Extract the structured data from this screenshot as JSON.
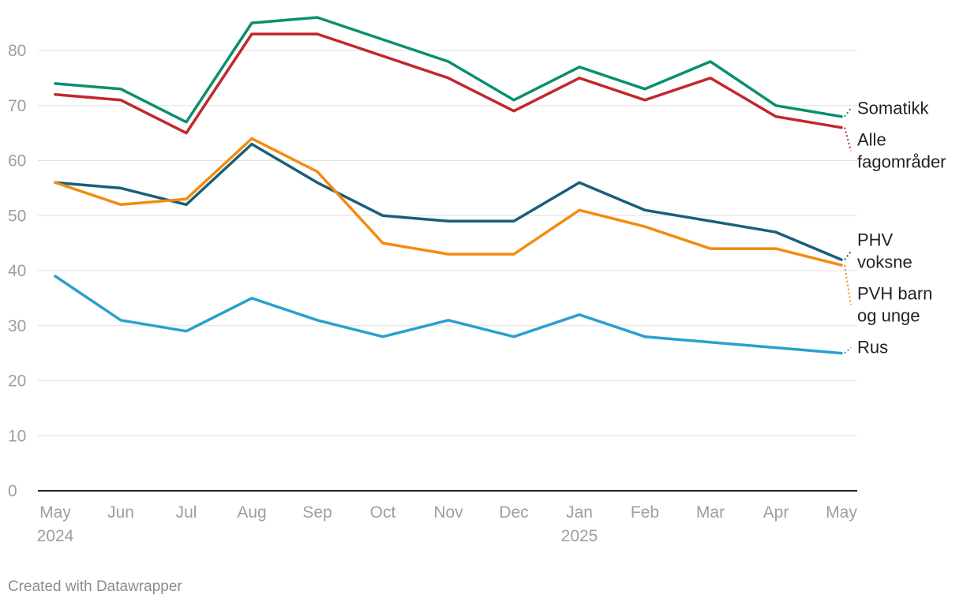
{
  "chart_data": {
    "type": "line",
    "x": [
      "May 2024",
      "Jun",
      "Jul",
      "Aug",
      "Sep",
      "Oct",
      "Nov",
      "Dec",
      "Jan 2025",
      "Feb",
      "Mar",
      "Apr",
      "May"
    ],
    "x_tick_labels": [
      [
        "May",
        "2024"
      ],
      [
        "Jun"
      ],
      [
        "Jul"
      ],
      [
        "Aug"
      ],
      [
        "Sep"
      ],
      [
        "Oct"
      ],
      [
        "Nov"
      ],
      [
        "Dec"
      ],
      [
        "Jan",
        "2025"
      ],
      [
        "Feb"
      ],
      [
        "Mar"
      ],
      [
        "Apr"
      ],
      [
        "May"
      ]
    ],
    "y_ticks": [
      0,
      10,
      20,
      30,
      40,
      50,
      60,
      70,
      80
    ],
    "ylim": [
      0,
      86
    ],
    "grid": true,
    "legend": "direct labels at right",
    "series": [
      {
        "name": "Somatikk",
        "label_lines": [
          "Somatikk"
        ],
        "color": "#0a8f6f",
        "values": [
          74,
          73,
          67,
          85,
          86,
          82,
          78,
          71,
          77,
          73,
          78,
          70,
          68
        ]
      },
      {
        "name": "Alle fagområder",
        "label_lines": [
          "Alle",
          "fagområder"
        ],
        "color": "#c1272d",
        "values": [
          72,
          71,
          65,
          83,
          83,
          79,
          75,
          69,
          75,
          71,
          75,
          68,
          66
        ]
      },
      {
        "name": "PHV voksne",
        "label_lines": [
          "PHV",
          "voksne"
        ],
        "color": "#1b5e7a",
        "values": [
          56,
          55,
          52,
          63,
          56,
          50,
          49,
          49,
          56,
          51,
          49,
          47,
          42
        ]
      },
      {
        "name": "PVH barn og unge",
        "label_lines": [
          "PVH barn",
          "og unge"
        ],
        "color": "#f28c0f",
        "values": [
          56,
          52,
          53,
          64,
          58,
          45,
          43,
          43,
          51,
          48,
          44,
          44,
          41
        ]
      },
      {
        "name": "Rus",
        "label_lines": [
          "Rus"
        ],
        "color": "#2aa0cf",
        "values": [
          39,
          31,
          29,
          35,
          31,
          28,
          31,
          28,
          32,
          28,
          27,
          26,
          25
        ]
      }
    ]
  },
  "footer": {
    "credit": "Created with Datawrapper"
  }
}
